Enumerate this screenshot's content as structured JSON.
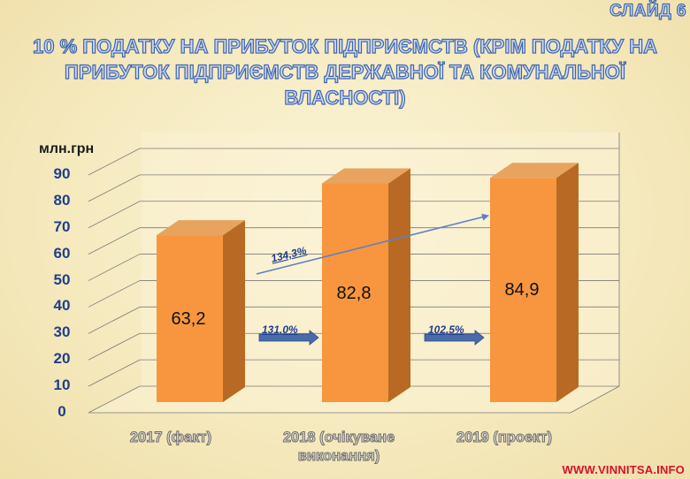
{
  "slide_label": "СЛАЙД 6",
  "title": "10 % ПОДАТКУ НА ПРИБУТОК ПІДПРИЄМСТВ (КРІМ ПОДАТКУ НА ПРИБУТОК ПІДПРИЄМСТВ ДЕРЖАВНОЇ ТА КОМУНАЛЬНОЇ ВЛАСНОСТІ)",
  "watermark": "WWW.VINNITSA.INFO",
  "chart_data": {
    "type": "bar",
    "ylabel": "млн.грн",
    "ylim": [
      0,
      90
    ],
    "yticks": [
      "0",
      "10",
      "20",
      "30",
      "40",
      "50",
      "60",
      "70",
      "80",
      "90"
    ],
    "categories": [
      "2017 (факт)",
      "2018 (очікуване виконання)",
      "2019 (проект)"
    ],
    "values": [
      63.2,
      82.8,
      84.9
    ],
    "value_labels": [
      "63,2",
      "82,8",
      "84,9"
    ],
    "bar_color": "#f7963f",
    "annotations": {
      "growth_2019_vs_2017": "134,3%",
      "growth_2018_vs_2017": "131,0%",
      "growth_2019_vs_2018": "102,5%"
    },
    "grid": true
  }
}
